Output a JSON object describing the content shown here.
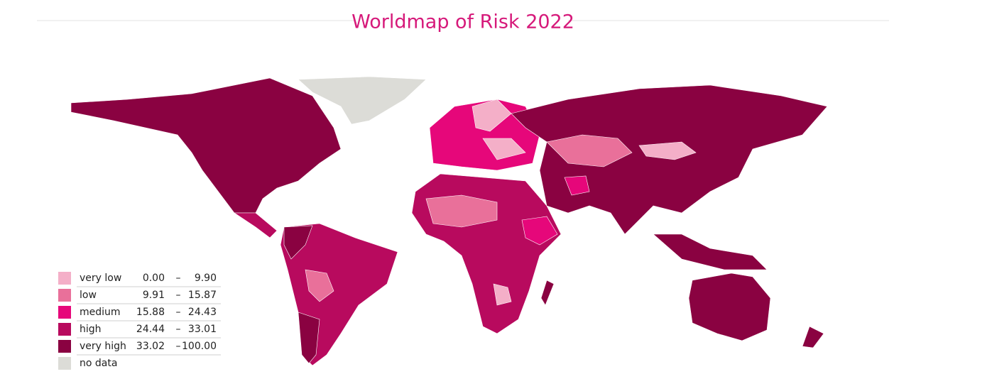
{
  "header": {
    "title": "Worldmap of Risk 2022"
  },
  "legend": {
    "range_separator": "–",
    "items": [
      {
        "label": "very low",
        "from": "0.00",
        "to": "9.90",
        "color": "#f4afc8"
      },
      {
        "label": "low",
        "from": "9.91",
        "to": "15.87",
        "color": "#e9709a"
      },
      {
        "label": "medium",
        "from": "15.88",
        "to": "24.43",
        "color": "#e6077a"
      },
      {
        "label": "high",
        "from": "24.44",
        "to": "33.01",
        "color": "#b80a5e"
      },
      {
        "label": "very high",
        "from": "33.02",
        "to": "100.00",
        "color": "#8a0241"
      },
      {
        "label": "no data",
        "color": "#dcdcd7"
      }
    ]
  }
}
